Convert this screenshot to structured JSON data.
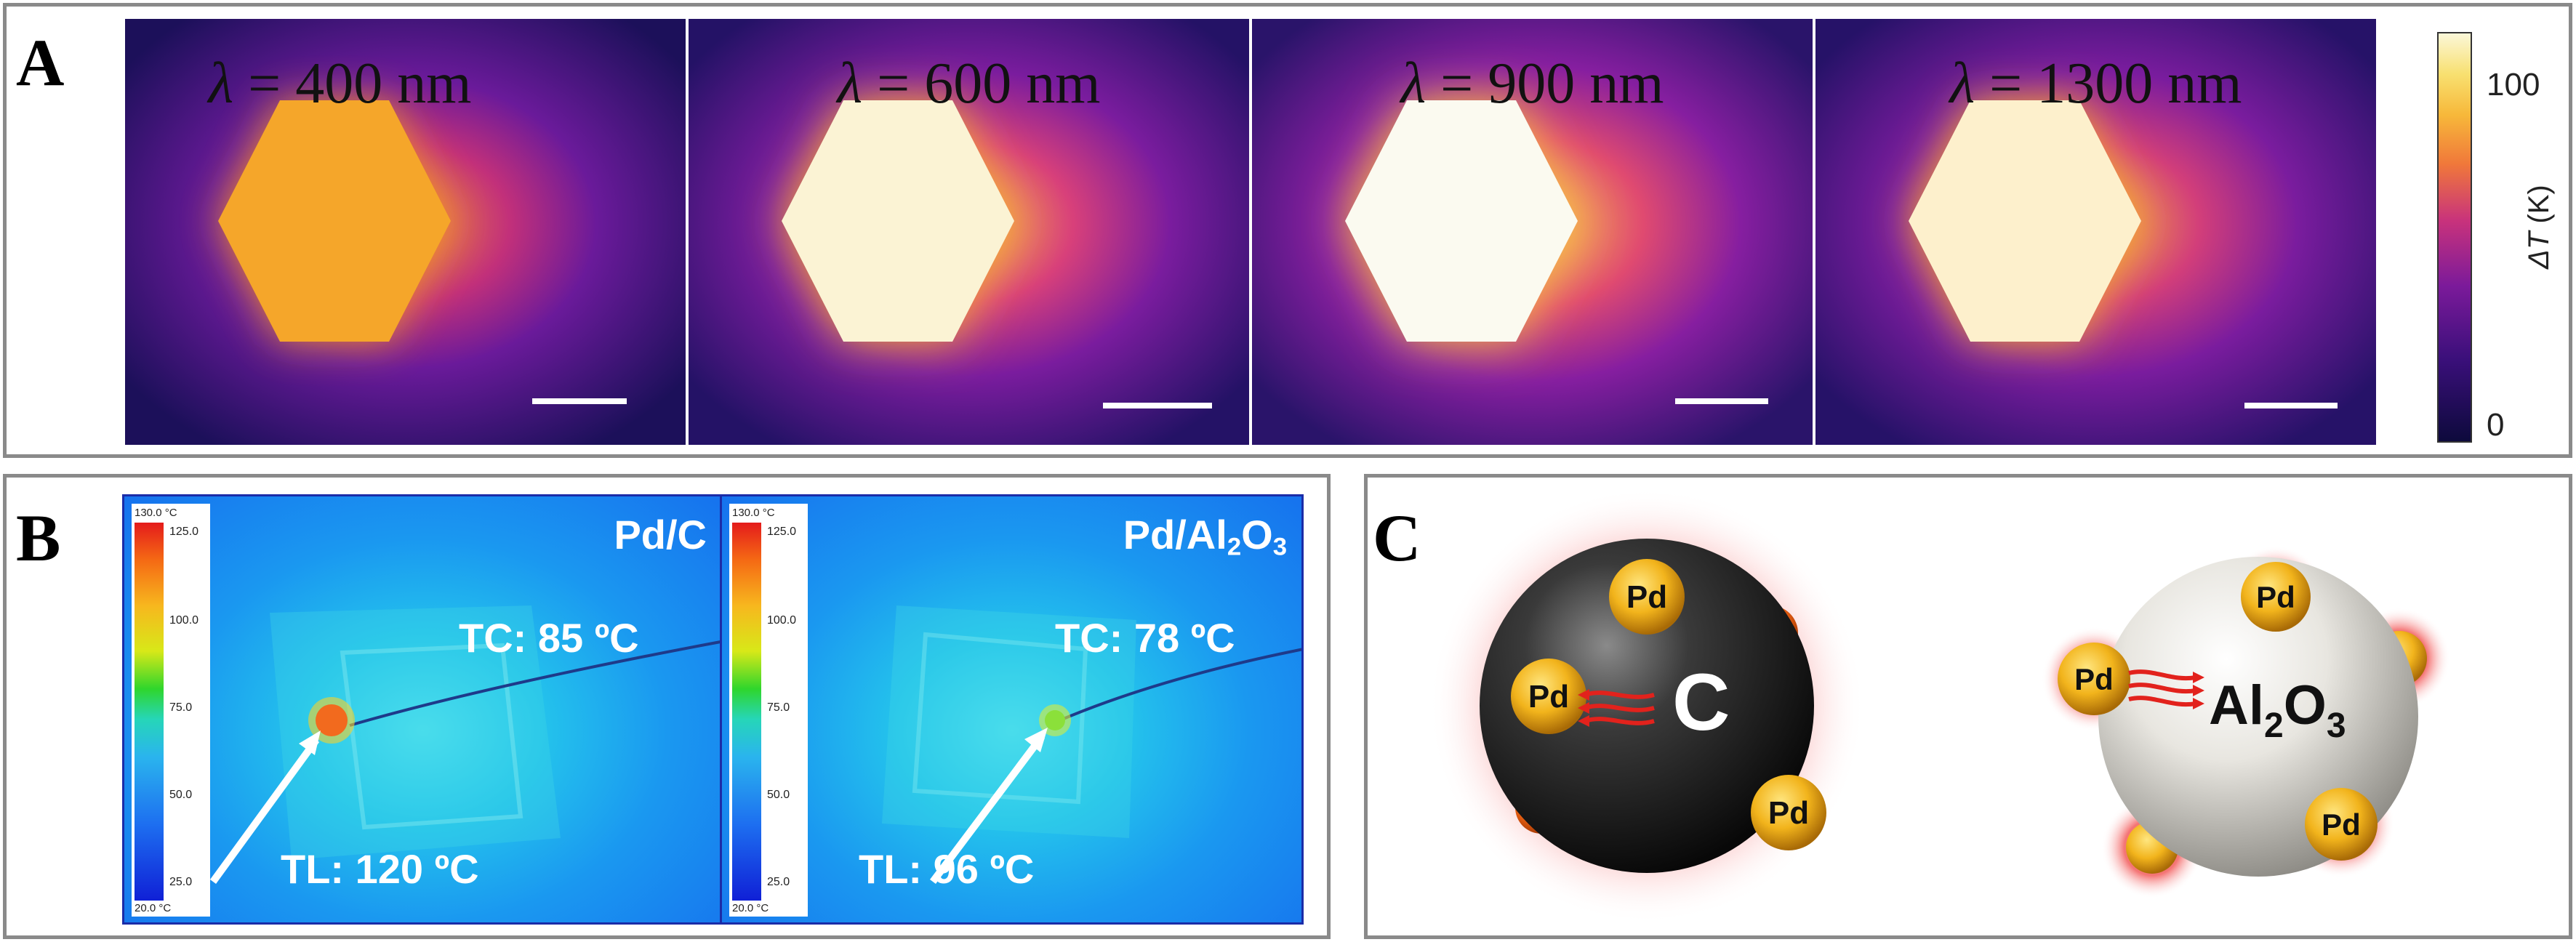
{
  "panel_a": {
    "label": "A",
    "lambda_unit": "nm",
    "subpanels": [
      {
        "wavelength": "400",
        "center_color": "#f5a62a"
      },
      {
        "wavelength": "600",
        "center_color": "#fbf3d4"
      },
      {
        "wavelength": "900",
        "center_color": "#fbfaf0"
      },
      {
        "wavelength": "1300",
        "center_color": "#fdf0cc"
      }
    ],
    "colorbar": {
      "ticks": [
        "100",
        "0"
      ],
      "label_symbol": "ΔT",
      "label_unit": "(K)"
    }
  },
  "panel_b": {
    "label": "B",
    "scale": {
      "top": "130.0 °C",
      "bottom": "20.0 °C",
      "ticks": [
        "125.0",
        "100.0",
        "75.0",
        "50.0",
        "25.0"
      ]
    },
    "images": [
      {
        "title": "Pd/C",
        "tc": "TC: 85 ºC",
        "tl": "TL: 120 ºC",
        "hotspot_color": "#f26a1e"
      },
      {
        "title_main": "Pd/Al",
        "title_sub": "2",
        "title_end": "O",
        "title_sub2": "3",
        "tc": "TC: 78 ºC",
        "tl": "TL: 96 ºC",
        "hotspot_color": "#8be03a"
      }
    ]
  },
  "panel_c": {
    "label": "C",
    "left_sphere": {
      "support": "C",
      "particles": [
        "Pd",
        "Pd",
        "Pd"
      ]
    },
    "right_sphere": {
      "support_main": "Al",
      "support_sub": "2",
      "support_end": "O",
      "support_sub2": "3",
      "particles": [
        "Pd",
        "Pd",
        "Pd"
      ]
    }
  }
}
